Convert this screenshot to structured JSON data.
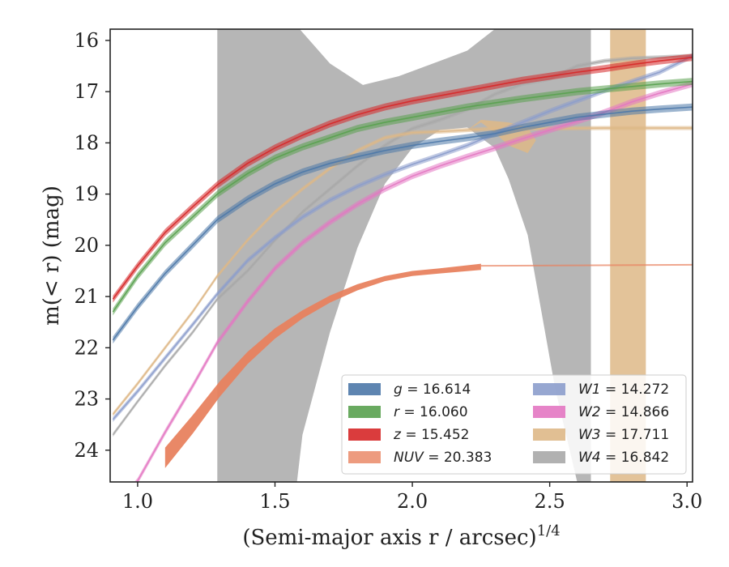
{
  "chart_data": {
    "type": "line",
    "xlabel": "(Semi-major axis r / arcsec)",
    "xlabel_exponent": "1/4",
    "ylabel": "m(< r) (mag)",
    "xlim": [
      0.9,
      3.02
    ],
    "ylim": [
      24.62,
      15.78
    ],
    "y_inverted": true,
    "x_ticks": [
      1.0,
      1.5,
      2.0,
      2.5,
      3.0
    ],
    "x_tick_labels": [
      "1.0",
      "1.5",
      "2.0",
      "2.5",
      "3.0"
    ],
    "y_ticks": [
      16,
      17,
      18,
      19,
      20,
      21,
      22,
      23,
      24
    ],
    "y_tick_labels": [
      "16",
      "17",
      "18",
      "19",
      "20",
      "21",
      "22",
      "23",
      "24"
    ],
    "legend_position": "lower-right",
    "legend_columns": 2,
    "series": [
      {
        "name": "g",
        "value_label": "16.614",
        "color": "#4c78a8",
        "total_mag": 16.614,
        "points": [
          [
            0.91,
            21.85
          ],
          [
            1.0,
            21.2
          ],
          [
            1.1,
            20.55
          ],
          [
            1.2,
            20.0
          ],
          [
            1.29,
            19.5
          ],
          [
            1.4,
            19.1
          ],
          [
            1.5,
            18.8
          ],
          [
            1.6,
            18.57
          ],
          [
            1.7,
            18.4
          ],
          [
            1.8,
            18.27
          ],
          [
            1.9,
            18.15
          ],
          [
            2.0,
            18.05
          ],
          [
            2.1,
            17.97
          ],
          [
            2.2,
            17.9
          ],
          [
            2.3,
            17.82
          ],
          [
            2.4,
            17.7
          ],
          [
            2.5,
            17.6
          ],
          [
            2.6,
            17.5
          ],
          [
            2.7,
            17.44
          ],
          [
            2.8,
            17.38
          ],
          [
            2.9,
            17.34
          ],
          [
            3.02,
            17.3
          ]
        ],
        "band_half_width": 0.07
      },
      {
        "name": "r",
        "value_label": "16.060",
        "color": "#59a14f",
        "total_mag": 16.06,
        "points": [
          [
            0.91,
            21.3
          ],
          [
            1.0,
            20.6
          ],
          [
            1.1,
            19.95
          ],
          [
            1.2,
            19.45
          ],
          [
            1.29,
            19.0
          ],
          [
            1.4,
            18.6
          ],
          [
            1.5,
            18.3
          ],
          [
            1.6,
            18.08
          ],
          [
            1.7,
            17.9
          ],
          [
            1.8,
            17.72
          ],
          [
            1.9,
            17.6
          ],
          [
            2.0,
            17.5
          ],
          [
            2.1,
            17.4
          ],
          [
            2.2,
            17.3
          ],
          [
            2.3,
            17.22
          ],
          [
            2.4,
            17.14
          ],
          [
            2.5,
            17.07
          ],
          [
            2.6,
            17.0
          ],
          [
            2.7,
            16.95
          ],
          [
            2.8,
            16.9
          ],
          [
            2.9,
            16.85
          ],
          [
            3.02,
            16.8
          ]
        ],
        "band_half_width": 0.07
      },
      {
        "name": "z",
        "value_label": "15.452",
        "color": "#d62728",
        "total_mag": 15.452,
        "points": [
          [
            0.91,
            21.05
          ],
          [
            1.0,
            20.4
          ],
          [
            1.1,
            19.75
          ],
          [
            1.2,
            19.25
          ],
          [
            1.29,
            18.82
          ],
          [
            1.4,
            18.4
          ],
          [
            1.5,
            18.1
          ],
          [
            1.6,
            17.85
          ],
          [
            1.7,
            17.63
          ],
          [
            1.8,
            17.45
          ],
          [
            1.9,
            17.3
          ],
          [
            2.0,
            17.18
          ],
          [
            2.1,
            17.08
          ],
          [
            2.2,
            16.98
          ],
          [
            2.3,
            16.88
          ],
          [
            2.4,
            16.78
          ],
          [
            2.5,
            16.7
          ],
          [
            2.6,
            16.62
          ],
          [
            2.7,
            16.55
          ],
          [
            2.8,
            16.47
          ],
          [
            2.9,
            16.4
          ],
          [
            3.02,
            16.33
          ]
        ],
        "band_half_width": 0.07
      },
      {
        "name": "NUV",
        "value_label": "20.383",
        "color": "#e8825f",
        "total_mag": 20.383,
        "points": [
          [
            1.1,
            24.15
          ],
          [
            1.2,
            23.5
          ],
          [
            1.3,
            22.8
          ],
          [
            1.4,
            22.2
          ],
          [
            1.5,
            21.72
          ],
          [
            1.6,
            21.35
          ],
          [
            1.7,
            21.05
          ],
          [
            1.8,
            20.82
          ],
          [
            1.9,
            20.65
          ],
          [
            2.0,
            20.55
          ],
          [
            2.1,
            20.5
          ],
          [
            2.25,
            20.42
          ]
        ],
        "band_half_widths": [
          0.2,
          0.18,
          0.15,
          0.12,
          0.1,
          0.08,
          0.07,
          0.06,
          0.05,
          0.05,
          0.05,
          0.06
        ],
        "extension": [
          [
            2.25,
            20.4
          ],
          [
            3.02,
            20.38
          ]
        ]
      },
      {
        "name": "W1",
        "value_label": "14.272",
        "color": "#8c9dcc",
        "total_mag": 14.272,
        "points": [
          [
            0.91,
            23.4
          ],
          [
            1.0,
            22.85
          ],
          [
            1.1,
            22.2
          ],
          [
            1.2,
            21.55
          ],
          [
            1.29,
            20.95
          ],
          [
            1.4,
            20.3
          ],
          [
            1.5,
            19.85
          ],
          [
            1.6,
            19.45
          ],
          [
            1.7,
            19.12
          ],
          [
            1.8,
            18.85
          ],
          [
            1.9,
            18.62
          ],
          [
            2.0,
            18.42
          ],
          [
            2.1,
            18.24
          ],
          [
            2.2,
            18.05
          ],
          [
            2.3,
            17.82
          ],
          [
            2.4,
            17.6
          ],
          [
            2.5,
            17.38
          ],
          [
            2.6,
            17.18
          ],
          [
            2.7,
            16.98
          ],
          [
            2.8,
            16.8
          ],
          [
            2.9,
            16.62
          ],
          [
            3.02,
            16.3
          ]
        ],
        "band_half_width": 0.05
      },
      {
        "name": "W2",
        "value_label": "14.866",
        "color": "#e377c2",
        "total_mag": 14.866,
        "points": [
          [
            0.91,
            25.2
          ],
          [
            1.0,
            24.6
          ],
          [
            1.1,
            23.65
          ],
          [
            1.2,
            22.75
          ],
          [
            1.29,
            21.9
          ],
          [
            1.4,
            21.1
          ],
          [
            1.5,
            20.45
          ],
          [
            1.6,
            19.95
          ],
          [
            1.7,
            19.55
          ],
          [
            1.8,
            19.2
          ],
          [
            1.9,
            18.9
          ],
          [
            2.0,
            18.65
          ],
          [
            2.1,
            18.45
          ],
          [
            2.2,
            18.27
          ],
          [
            2.3,
            18.1
          ],
          [
            2.4,
            17.92
          ],
          [
            2.5,
            17.75
          ],
          [
            2.6,
            17.58
          ],
          [
            2.7,
            17.4
          ],
          [
            2.8,
            17.2
          ],
          [
            2.9,
            17.03
          ],
          [
            3.02,
            16.85
          ]
        ],
        "band_half_width": 0.06
      },
      {
        "name": "W3",
        "value_label": "17.711",
        "color": "#deb887",
        "total_mag": 17.711,
        "points": [
          [
            0.91,
            23.3
          ],
          [
            1.0,
            22.7
          ],
          [
            1.1,
            22.0
          ],
          [
            1.2,
            21.3
          ],
          [
            1.29,
            20.6
          ],
          [
            1.4,
            19.9
          ],
          [
            1.5,
            19.35
          ],
          [
            1.6,
            18.9
          ],
          [
            1.7,
            18.5
          ],
          [
            1.8,
            18.15
          ],
          [
            1.9,
            17.9
          ],
          [
            2.0,
            17.8
          ],
          [
            2.1,
            17.78
          ],
          [
            2.2,
            17.75
          ],
          [
            2.3,
            17.72
          ],
          [
            2.5,
            17.72
          ],
          [
            2.7,
            17.71
          ],
          [
            3.02,
            17.71
          ]
        ],
        "band_half_width": 0.04,
        "uncertainty_span": {
          "x_start": 2.72,
          "x_end": 2.85,
          "y_low": 24.62,
          "y_high": 15.78
        }
      },
      {
        "name": "W4",
        "value_label": "16.842",
        "color": "#a9a9a9",
        "total_mag": 16.842,
        "points": [
          [
            0.91,
            23.7
          ],
          [
            1.0,
            23.05
          ],
          [
            1.1,
            22.35
          ],
          [
            1.2,
            21.7
          ],
          [
            1.29,
            21.05
          ],
          [
            1.4,
            20.5
          ],
          [
            1.5,
            19.9
          ],
          [
            1.6,
            19.35
          ],
          [
            1.7,
            18.9
          ],
          [
            1.8,
            18.45
          ],
          [
            1.9,
            18.05
          ],
          [
            2.0,
            17.72
          ],
          [
            2.1,
            17.55
          ],
          [
            2.2,
            17.35
          ],
          [
            2.3,
            17.05
          ],
          [
            2.4,
            16.85
          ],
          [
            2.5,
            16.75
          ],
          [
            2.6,
            16.5
          ],
          [
            2.7,
            16.4
          ],
          [
            2.8,
            16.35
          ],
          [
            2.9,
            16.33
          ],
          [
            3.02,
            16.3
          ]
        ],
        "band_half_width": 0.04,
        "uncertainty_region": [
          [
            1.29,
            15.78
          ],
          [
            1.59,
            15.78
          ],
          [
            1.7,
            16.45
          ],
          [
            1.82,
            16.87
          ],
          [
            1.95,
            16.7
          ],
          [
            2.1,
            16.4
          ],
          [
            2.2,
            16.2
          ],
          [
            2.3,
            15.78
          ],
          [
            2.65,
            15.78
          ],
          [
            2.65,
            24.62
          ],
          [
            2.6,
            24.62
          ],
          [
            2.52,
            22.8
          ],
          [
            2.42,
            19.8
          ],
          [
            2.35,
            18.7
          ],
          [
            2.3,
            18.1
          ],
          [
            2.2,
            17.7
          ],
          [
            2.1,
            17.75
          ],
          [
            2.0,
            18.1
          ],
          [
            1.9,
            18.8
          ],
          [
            1.8,
            20.05
          ],
          [
            1.7,
            21.7
          ],
          [
            1.6,
            23.7
          ],
          [
            1.58,
            24.62
          ],
          [
            1.29,
            24.62
          ]
        ]
      }
    ]
  }
}
